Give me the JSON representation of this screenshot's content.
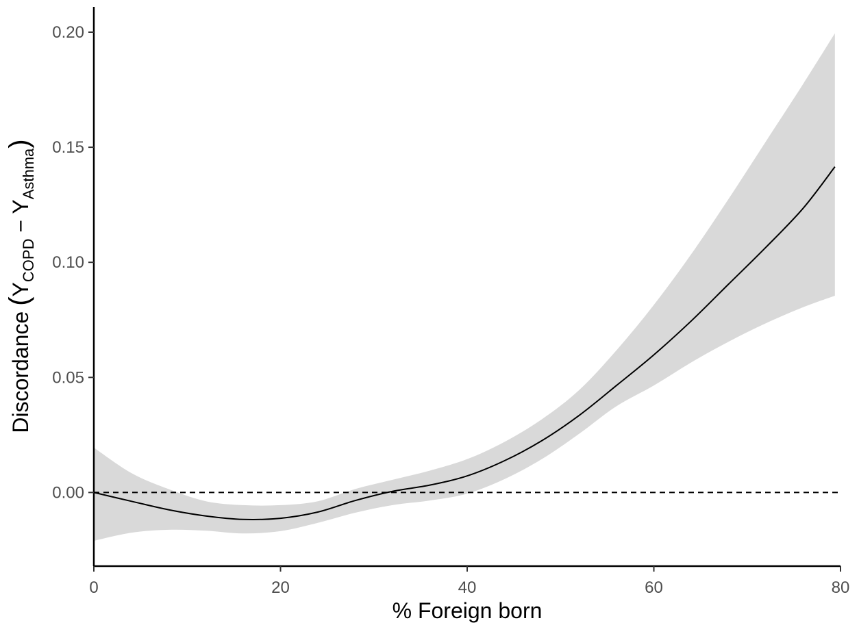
{
  "chart_data": {
    "type": "line",
    "title": "",
    "xlabel": "% Foreign born",
    "ylabel": {
      "prefix": "Discordance",
      "open_paren": "(",
      "y1": "Y",
      "sub1": "COPD",
      "minus": " − ",
      "y2": "Y",
      "sub2": "Asthma",
      "close_paren": ")"
    },
    "xlim": [
      0,
      80
    ],
    "ylim": [
      -0.032,
      0.211
    ],
    "x_ticks": [
      0,
      20,
      40,
      60,
      80
    ],
    "x_tick_labels": [
      "0",
      "20",
      "40",
      "60",
      "80"
    ],
    "y_ticks": [
      0.0,
      0.05,
      0.1,
      0.15,
      0.2
    ],
    "y_tick_labels": [
      "0.00",
      "0.05",
      "0.10",
      "0.15",
      "0.20"
    ],
    "grid": false,
    "reference_line": {
      "y": 0,
      "style": "dashed",
      "color": "#000000"
    },
    "series": [
      {
        "type": "smooth",
        "color": "#000000",
        "ribbon_color": "#d9d9d9",
        "x": [
          0,
          4,
          8,
          12,
          16,
          20,
          24,
          28,
          32,
          36,
          40,
          44,
          48,
          52,
          56,
          60,
          64,
          68,
          72,
          76,
          79.4
        ],
        "y": [
          0.0,
          -0.0038,
          -0.0075,
          -0.0102,
          -0.0117,
          -0.0112,
          -0.0085,
          -0.0035,
          0.0005,
          0.0032,
          0.0072,
          0.0138,
          0.0225,
          0.0335,
          0.0465,
          0.0598,
          0.0745,
          0.0905,
          0.1065,
          0.1235,
          0.1415
        ],
        "lower": [
          -0.021,
          -0.0175,
          -0.0162,
          -0.0166,
          -0.0178,
          -0.0168,
          -0.0132,
          -0.0088,
          -0.0055,
          -0.0035,
          -0.0005,
          0.0058,
          0.0145,
          0.0255,
          0.0375,
          0.0465,
          0.0565,
          0.0655,
          0.0735,
          0.0805,
          0.0855
        ],
        "upper": [
          0.0195,
          0.0085,
          0.0015,
          -0.0038,
          -0.0055,
          -0.0055,
          -0.0038,
          0.0015,
          0.0055,
          0.0095,
          0.0145,
          0.022,
          0.0318,
          0.0445,
          0.0618,
          0.0815,
          0.1035,
          0.1275,
          0.1525,
          0.1775,
          0.1995
        ]
      }
    ]
  }
}
